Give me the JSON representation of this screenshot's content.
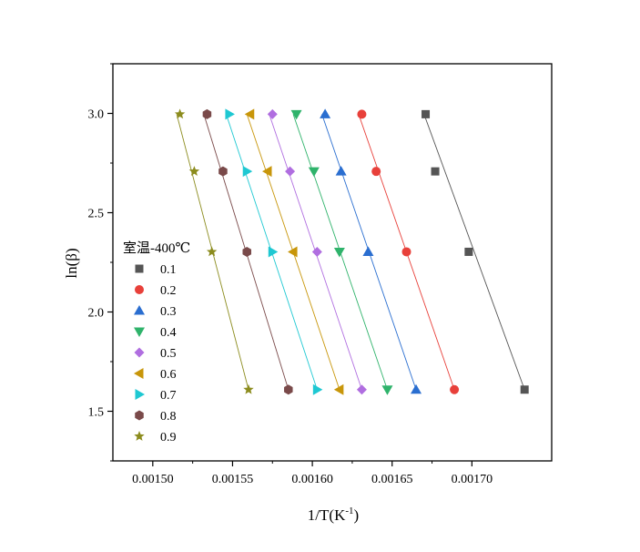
{
  "chart_data": {
    "type": "scatter",
    "xlabel": "1/T(K",
    "xlabel_superscript": "-1",
    "xlabel_suffix": ")",
    "ylabel": "ln(β)",
    "xlim": [
      0.001475,
      0.00175
    ],
    "ylim": [
      1.25,
      3.25
    ],
    "xticks": [
      0.0015,
      0.00155,
      0.0016,
      0.00165,
      0.0017
    ],
    "xtick_labels": [
      "0.00150",
      "0.00155",
      "0.00160",
      "0.00165",
      "0.00170"
    ],
    "yticks": [
      1.5,
      2.0,
      2.5,
      3.0
    ],
    "ytick_labels": [
      "1.5",
      "2.0",
      "2.5",
      "3.0"
    ],
    "grid": false,
    "legend_title": "室温-400℃",
    "legend_position": "center-left",
    "y": [
      1.609,
      2.303,
      2.708,
      2.996
    ],
    "series": [
      {
        "name": "0.1",
        "marker": "square",
        "color": "#555555",
        "x": [
          0.001733,
          0.001698,
          0.001677,
          0.001671
        ],
        "fit": [
          0.001733,
          0.00167
        ]
      },
      {
        "name": "0.2",
        "marker": "circle",
        "color": "#e8403a",
        "x": [
          0.001689,
          0.001659,
          0.00164,
          0.001631
        ],
        "fit": [
          0.001689,
          0.001629
        ]
      },
      {
        "name": "0.3",
        "marker": "triangle-up",
        "color": "#2a6ed0",
        "x": [
          0.001665,
          0.001635,
          0.001618,
          0.001608
        ],
        "fit": [
          0.001665,
          0.001606
        ]
      },
      {
        "name": "0.4",
        "marker": "triangle-down",
        "color": "#2fb36b",
        "x": [
          0.001647,
          0.001617,
          0.001601,
          0.00159
        ],
        "fit": [
          0.001647,
          0.001588
        ]
      },
      {
        "name": "0.5",
        "marker": "diamond",
        "color": "#b06ee0",
        "x": [
          0.001631,
          0.001603,
          0.001586,
          0.001575
        ],
        "fit": [
          0.001631,
          0.001573
        ]
      },
      {
        "name": "0.6",
        "marker": "triangle-left",
        "color": "#c8960a",
        "x": [
          0.001617,
          0.001588,
          0.001572,
          0.001561
        ],
        "fit": [
          0.001617,
          0.001559
        ]
      },
      {
        "name": "0.7",
        "marker": "triangle-right",
        "color": "#1ec8d2",
        "x": [
          0.001603,
          0.001575,
          0.001559,
          0.001548
        ],
        "fit": [
          0.001603,
          0.001546
        ]
      },
      {
        "name": "0.8",
        "marker": "hexagon",
        "color": "#7a4a4a",
        "x": [
          0.001585,
          0.001559,
          0.001544,
          0.001534
        ],
        "fit": [
          0.001585,
          0.001532
        ]
      },
      {
        "name": "0.9",
        "marker": "star",
        "color": "#8c8c1e",
        "x": [
          0.00156,
          0.001537,
          0.001526,
          0.001517
        ],
        "fit": [
          0.00156,
          0.001515
        ]
      }
    ]
  }
}
